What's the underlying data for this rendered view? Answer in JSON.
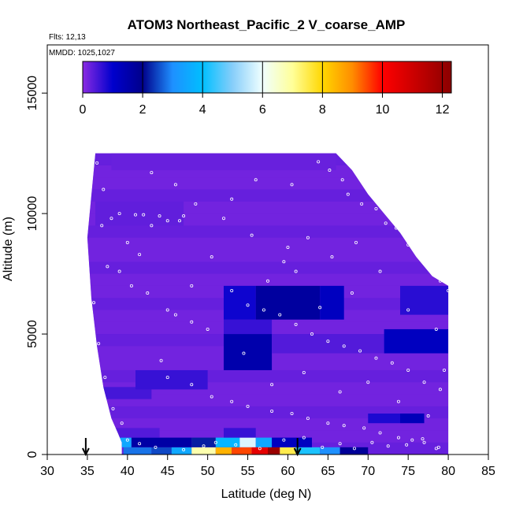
{
  "chart_data": {
    "type": "heatmap",
    "title": "ATOM3 Northeast_Pacific_2 V_coarse_AMP",
    "info_lines": [
      "Flts: 12,13",
      "MMDD: 1025,1027"
    ],
    "xlabel": "Latitude (deg N)",
    "ylabel": "Altitude (m)",
    "xlim": [
      30,
      85
    ],
    "ylim": [
      0,
      17000
    ],
    "x_ticks": [
      30,
      35,
      40,
      45,
      50,
      55,
      60,
      65,
      70,
      75,
      80,
      85
    ],
    "y_ticks": [
      0,
      5000,
      10000,
      15000
    ],
    "colorbar": {
      "range": [
        0,
        12.3
      ],
      "ticks": [
        0,
        2,
        4,
        6,
        8,
        10,
        12
      ],
      "stops": [
        {
          "v": 0,
          "c": "#8a2be2"
        },
        {
          "v": 1,
          "c": "#0000cd"
        },
        {
          "v": 2,
          "c": "#00008b"
        },
        {
          "v": 3,
          "c": "#1e90ff"
        },
        {
          "v": 4,
          "c": "#00bfff"
        },
        {
          "v": 5,
          "c": "#87cefa"
        },
        {
          "v": 6,
          "c": "#f0ffff"
        },
        {
          "v": 7,
          "c": "#ffff99"
        },
        {
          "v": 8,
          "c": "#ffd700"
        },
        {
          "v": 9,
          "c": "#ff8c00"
        },
        {
          "v": 10,
          "c": "#ff0000"
        },
        {
          "v": 11,
          "c": "#cd0000"
        },
        {
          "v": 12.3,
          "c": "#8b0000"
        }
      ]
    },
    "top_altitude_envelope": [
      [
        36,
        12500
      ],
      [
        66,
        12500
      ],
      [
        68,
        11800
      ],
      [
        70,
        10800
      ],
      [
        72,
        10000
      ],
      [
        74,
        9200
      ],
      [
        76,
        8200
      ],
      [
        78,
        7400
      ],
      [
        80,
        7000
      ],
      [
        80,
        0
      ]
    ],
    "left_altitude_envelope": [
      [
        36,
        12500
      ],
      [
        35,
        9000
      ],
      [
        35.5,
        6500
      ],
      [
        36.2,
        4500
      ],
      [
        37,
        2800
      ],
      [
        38,
        1500
      ],
      [
        38.8,
        900
      ],
      [
        39.3,
        500
      ],
      [
        39.3,
        0
      ]
    ],
    "cells": [
      {
        "lat": [
          39.5,
          43
        ],
        "alt": [
          0,
          300
        ],
        "value": 2.8
      },
      {
        "lat": [
          43,
          45.5
        ],
        "alt": [
          0,
          300
        ],
        "value": 2.5
      },
      {
        "lat": [
          45.5,
          48
        ],
        "alt": [
          0,
          300
        ],
        "value": 3.5
      },
      {
        "lat": [
          48,
          51
        ],
        "alt": [
          0,
          300
        ],
        "value": 6.8
      },
      {
        "lat": [
          51,
          53
        ],
        "alt": [
          0,
          300
        ],
        "value": 8.5
      },
      {
        "lat": [
          53,
          55.5
        ],
        "alt": [
          0,
          300
        ],
        "value": 9.5
      },
      {
        "lat": [
          55.5,
          57.5
        ],
        "alt": [
          0,
          300
        ],
        "value": 10.5
      },
      {
        "lat": [
          57.5,
          59
        ],
        "alt": [
          0,
          300
        ],
        "value": 12
      },
      {
        "lat": [
          59,
          61
        ],
        "alt": [
          0,
          300
        ],
        "value": 7.5
      },
      {
        "lat": [
          61,
          64
        ],
        "alt": [
          0,
          300
        ],
        "value": 4.2
      },
      {
        "lat": [
          64,
          66.5
        ],
        "alt": [
          0,
          300
        ],
        "value": 3
      },
      {
        "lat": [
          66.5,
          70
        ],
        "alt": [
          0,
          300
        ],
        "value": 1.8
      },
      {
        "lat": [
          38.8,
          40.5
        ],
        "alt": [
          300,
          700
        ],
        "value": 3.5
      },
      {
        "lat": [
          40.5,
          48
        ],
        "alt": [
          300,
          700
        ],
        "value": 1.6
      },
      {
        "lat": [
          48,
          51
        ],
        "alt": [
          300,
          700
        ],
        "value": 2.2
      },
      {
        "lat": [
          51,
          54
        ],
        "alt": [
          300,
          700
        ],
        "value": 3.8
      },
      {
        "lat": [
          54,
          56
        ],
        "alt": [
          300,
          700
        ],
        "value": 5.8
      },
      {
        "lat": [
          56,
          58
        ],
        "alt": [
          300,
          700
        ],
        "value": 3.5
      },
      {
        "lat": [
          58,
          63
        ],
        "alt": [
          300,
          700
        ],
        "value": 1.2
      },
      {
        "lat": [
          38.5,
          44
        ],
        "alt": [
          700,
          1100
        ],
        "value": 0.4
      },
      {
        "lat": [
          52,
          56
        ],
        "alt": [
          700,
          1100
        ],
        "value": 0.6
      },
      {
        "lat": [
          70,
          74
        ],
        "alt": [
          1300,
          1700
        ],
        "value": 0.8
      },
      {
        "lat": [
          74,
          77
        ],
        "alt": [
          1300,
          1700
        ],
        "value": 1.3
      },
      {
        "lat": [
          37,
          43
        ],
        "alt": [
          2300,
          2800
        ],
        "value": 0.5
      },
      {
        "lat": [
          41,
          50
        ],
        "alt": [
          2700,
          3500
        ],
        "value": 0.6
      },
      {
        "lat": [
          52,
          58
        ],
        "alt": [
          3500,
          5000
        ],
        "value": 1.5
      },
      {
        "lat": [
          58,
          72
        ],
        "alt": [
          4200,
          5000
        ],
        "value": 0.4
      },
      {
        "lat": [
          52,
          58
        ],
        "alt": [
          5000,
          5600
        ],
        "value": 0.6
      },
      {
        "lat": [
          72,
          80
        ],
        "alt": [
          4200,
          5200
        ],
        "value": 1.2
      },
      {
        "lat": [
          52,
          56
        ],
        "alt": [
          5600,
          7000
        ],
        "value": 0.9
      },
      {
        "lat": [
          56,
          64
        ],
        "alt": [
          5600,
          7000
        ],
        "value": 1.7
      },
      {
        "lat": [
          64,
          67
        ],
        "alt": [
          5600,
          7000
        ],
        "value": 1.2
      },
      {
        "lat": [
          74,
          80
        ],
        "alt": [
          5800,
          7000
        ],
        "value": 0.7
      },
      {
        "lat": [
          36,
          47
        ],
        "alt": [
          9500,
          10500
        ],
        "value": 0.3
      },
      {
        "lat": [
          38,
          66
        ],
        "alt": [
          11800,
          12500
        ],
        "value": 0.25
      }
    ],
    "sample_points": [
      [
        35.5,
        12400
      ],
      [
        36.2,
        12100
      ],
      [
        37,
        11000
      ],
      [
        36.8,
        9500
      ],
      [
        38,
        9800
      ],
      [
        39,
        10000
      ],
      [
        41,
        9950
      ],
      [
        42,
        9950
      ],
      [
        44,
        9900
      ],
      [
        45,
        9700
      ],
      [
        46.5,
        9700
      ],
      [
        47,
        9900
      ],
      [
        43,
        9500
      ],
      [
        41.5,
        8300
      ],
      [
        37.5,
        7800
      ],
      [
        39,
        7600
      ],
      [
        40.5,
        7000
      ],
      [
        42.5,
        6700
      ],
      [
        45,
        6000
      ],
      [
        46,
        5800
      ],
      [
        48,
        5500
      ],
      [
        50,
        5200
      ],
      [
        53,
        6800
      ],
      [
        55,
        6200
      ],
      [
        57,
        6000
      ],
      [
        59,
        5800
      ],
      [
        61,
        5400
      ],
      [
        63,
        5000
      ],
      [
        65,
        4700
      ],
      [
        67,
        4500
      ],
      [
        69,
        4300
      ],
      [
        71,
        4000
      ],
      [
        73,
        3800
      ],
      [
        75,
        3500
      ],
      [
        77,
        3000
      ],
      [
        79,
        2700
      ],
      [
        44.2,
        3900
      ],
      [
        45,
        3200
      ],
      [
        48,
        2900
      ],
      [
        50.5,
        2400
      ],
      [
        53,
        2200
      ],
      [
        55,
        2000
      ],
      [
        58,
        1800
      ],
      [
        60.5,
        1700
      ],
      [
        62.5,
        1500
      ],
      [
        65,
        1300
      ],
      [
        67,
        1200
      ],
      [
        69.5,
        1100
      ],
      [
        71.5,
        900
      ],
      [
        73.8,
        700
      ],
      [
        75.5,
        600
      ],
      [
        77,
        500
      ],
      [
        78.8,
        300
      ],
      [
        38.2,
        1900
      ],
      [
        39.3,
        1300
      ],
      [
        40,
        600
      ],
      [
        41.5,
        450
      ],
      [
        43.5,
        300
      ],
      [
        47,
        200
      ],
      [
        49.5,
        350
      ],
      [
        51,
        500
      ],
      [
        53.5,
        400
      ],
      [
        56.5,
        250
      ],
      [
        59.5,
        600
      ],
      [
        62,
        700
      ],
      [
        64.3,
        300
      ],
      [
        66.5,
        450
      ],
      [
        68.3,
        250
      ],
      [
        70.5,
        500
      ],
      [
        72.5,
        350
      ],
      [
        74.8,
        400
      ],
      [
        76.8,
        650
      ],
      [
        78.5,
        250
      ],
      [
        63.8,
        12150
      ],
      [
        65.2,
        11800
      ],
      [
        66.8,
        11400
      ],
      [
        67.5,
        10800
      ],
      [
        69.2,
        10400
      ],
      [
        71,
        10200
      ],
      [
        72.2,
        9600
      ],
      [
        73.5,
        9400
      ],
      [
        75,
        8700
      ],
      [
        76.5,
        8200
      ],
      [
        77.8,
        7700
      ],
      [
        79,
        7200
      ],
      [
        80,
        6800
      ],
      [
        61,
        7600
      ],
      [
        59.5,
        8000
      ],
      [
        55.5,
        9100
      ],
      [
        52,
        9800
      ],
      [
        48.5,
        10400
      ],
      [
        46,
        11200
      ],
      [
        43,
        11700
      ],
      [
        40,
        8800
      ],
      [
        35.8,
        6300
      ],
      [
        36.4,
        4600
      ],
      [
        37.2,
        3200
      ],
      [
        54.5,
        4200
      ],
      [
        58,
        2900
      ],
      [
        62,
        3400
      ],
      [
        66.5,
        2600
      ],
      [
        70,
        3000
      ],
      [
        73.8,
        2200
      ],
      [
        77.5,
        1600
      ],
      [
        57.5,
        7200
      ],
      [
        60,
        8600
      ],
      [
        64,
        6100
      ],
      [
        68,
        6700
      ],
      [
        71.5,
        7600
      ],
      [
        75,
        6000
      ],
      [
        78.5,
        5200
      ],
      [
        79.5,
        3500
      ],
      [
        48,
        7000
      ],
      [
        50.5,
        8200
      ],
      [
        53,
        10600
      ],
      [
        56,
        11400
      ],
      [
        60.5,
        11200
      ],
      [
        62.5,
        9000
      ],
      [
        65.5,
        8200
      ],
      [
        68.5,
        8800
      ]
    ],
    "flight_markers_lat": [
      34.8,
      61.2
    ]
  }
}
